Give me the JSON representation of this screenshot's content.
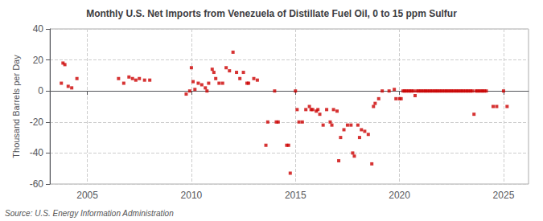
{
  "chart_data": {
    "type": "scatter",
    "title": "Monthly U.S. Net Imports from Venezuela of Distillate Fuel Oil, 0 to 15 ppm Sulfur",
    "ylabel": "Thousand Barrels per Day",
    "source": "Source: U.S. Energy Information Administration",
    "color": "#cc0000",
    "marker": "square",
    "grid": true,
    "xlim": [
      2003.2,
      2026.2
    ],
    "xticks": [
      2005,
      2010,
      2015,
      2020,
      2025
    ],
    "ylim": [
      -60,
      40
    ],
    "yticks": [
      -60,
      -40,
      -20,
      0,
      20,
      40
    ],
    "x": [
      2003.75,
      2003.83,
      2003.92,
      2004.08,
      2004.25,
      2004.5,
      2006.5,
      2006.75,
      2007.0,
      2007.17,
      2007.33,
      2007.5,
      2007.75,
      2008.0,
      2009.75,
      2009.92,
      2010.0,
      2010.08,
      2010.17,
      2010.33,
      2010.5,
      2010.67,
      2010.75,
      2010.83,
      2011.0,
      2011.08,
      2011.17,
      2011.33,
      2011.5,
      2011.67,
      2011.83,
      2012.0,
      2012.17,
      2012.33,
      2012.5,
      2012.67,
      2012.75,
      2013.0,
      2013.17,
      2013.58,
      2013.67,
      2014.0,
      2014.08,
      2014.17,
      2014.58,
      2014.67,
      2014.75,
      2015.0,
      2015.08,
      2015.17,
      2015.33,
      2015.5,
      2015.67,
      2015.75,
      2015.83,
      2016.0,
      2016.08,
      2016.17,
      2016.33,
      2016.5,
      2016.67,
      2016.75,
      2016.83,
      2017.0,
      2017.08,
      2017.17,
      2017.33,
      2017.5,
      2017.67,
      2017.75,
      2017.83,
      2018.0,
      2018.08,
      2018.17,
      2018.33,
      2018.5,
      2018.67,
      2018.75,
      2018.83,
      2019.0,
      2019.17,
      2019.5,
      2019.75,
      2019.83,
      2020.0,
      2020.08,
      2020.17,
      2020.25,
      2020.33,
      2020.42,
      2020.5,
      2020.58,
      2020.67,
      2020.75,
      2020.83,
      2020.92,
      2021.0,
      2021.08,
      2021.17,
      2021.25,
      2021.33,
      2021.42,
      2021.5,
      2021.58,
      2021.67,
      2021.75,
      2021.83,
      2021.92,
      2022.0,
      2022.08,
      2022.17,
      2022.25,
      2022.33,
      2022.42,
      2022.5,
      2022.58,
      2022.67,
      2022.75,
      2022.83,
      2022.92,
      2023.0,
      2023.08,
      2023.17,
      2023.25,
      2023.33,
      2023.42,
      2023.5,
      2023.58,
      2023.67,
      2023.75,
      2023.83,
      2023.92,
      2024.0,
      2024.08,
      2024.17,
      2024.5,
      2024.67,
      2025.0,
      2025.17
    ],
    "values": [
      5,
      18,
      17,
      3,
      2,
      8,
      8,
      5,
      9,
      8,
      7,
      8,
      7,
      7,
      -2,
      0,
      15,
      6,
      1,
      5,
      4,
      2,
      0,
      5,
      14,
      12,
      8,
      5,
      5,
      15,
      13,
      25,
      12,
      8,
      12,
      5,
      5,
      8,
      7,
      -35,
      -20,
      0,
      -20,
      -20,
      -35,
      -35,
      -53,
      0,
      -12,
      -20,
      -20,
      -12,
      -10,
      -12,
      -12,
      -13,
      -12,
      -15,
      -22,
      -12,
      -20,
      -22,
      -12,
      -13,
      -45,
      -30,
      -25,
      -22,
      -22,
      -40,
      -42,
      -22,
      -30,
      -25,
      -26,
      -28,
      -47,
      -10,
      -8,
      -5,
      0,
      0,
      1,
      -5,
      -5,
      -5,
      0,
      0,
      0,
      0,
      0,
      0,
      0,
      -3,
      0,
      0,
      0,
      0,
      0,
      0,
      0,
      0,
      0,
      0,
      0,
      0,
      0,
      0,
      0,
      0,
      0,
      0,
      0,
      0,
      0,
      0,
      0,
      0,
      0,
      0,
      0,
      0,
      0,
      0,
      0,
      0,
      0,
      -15,
      0,
      0,
      0,
      0,
      0,
      0,
      0,
      -10,
      -10,
      0,
      -10
    ]
  }
}
